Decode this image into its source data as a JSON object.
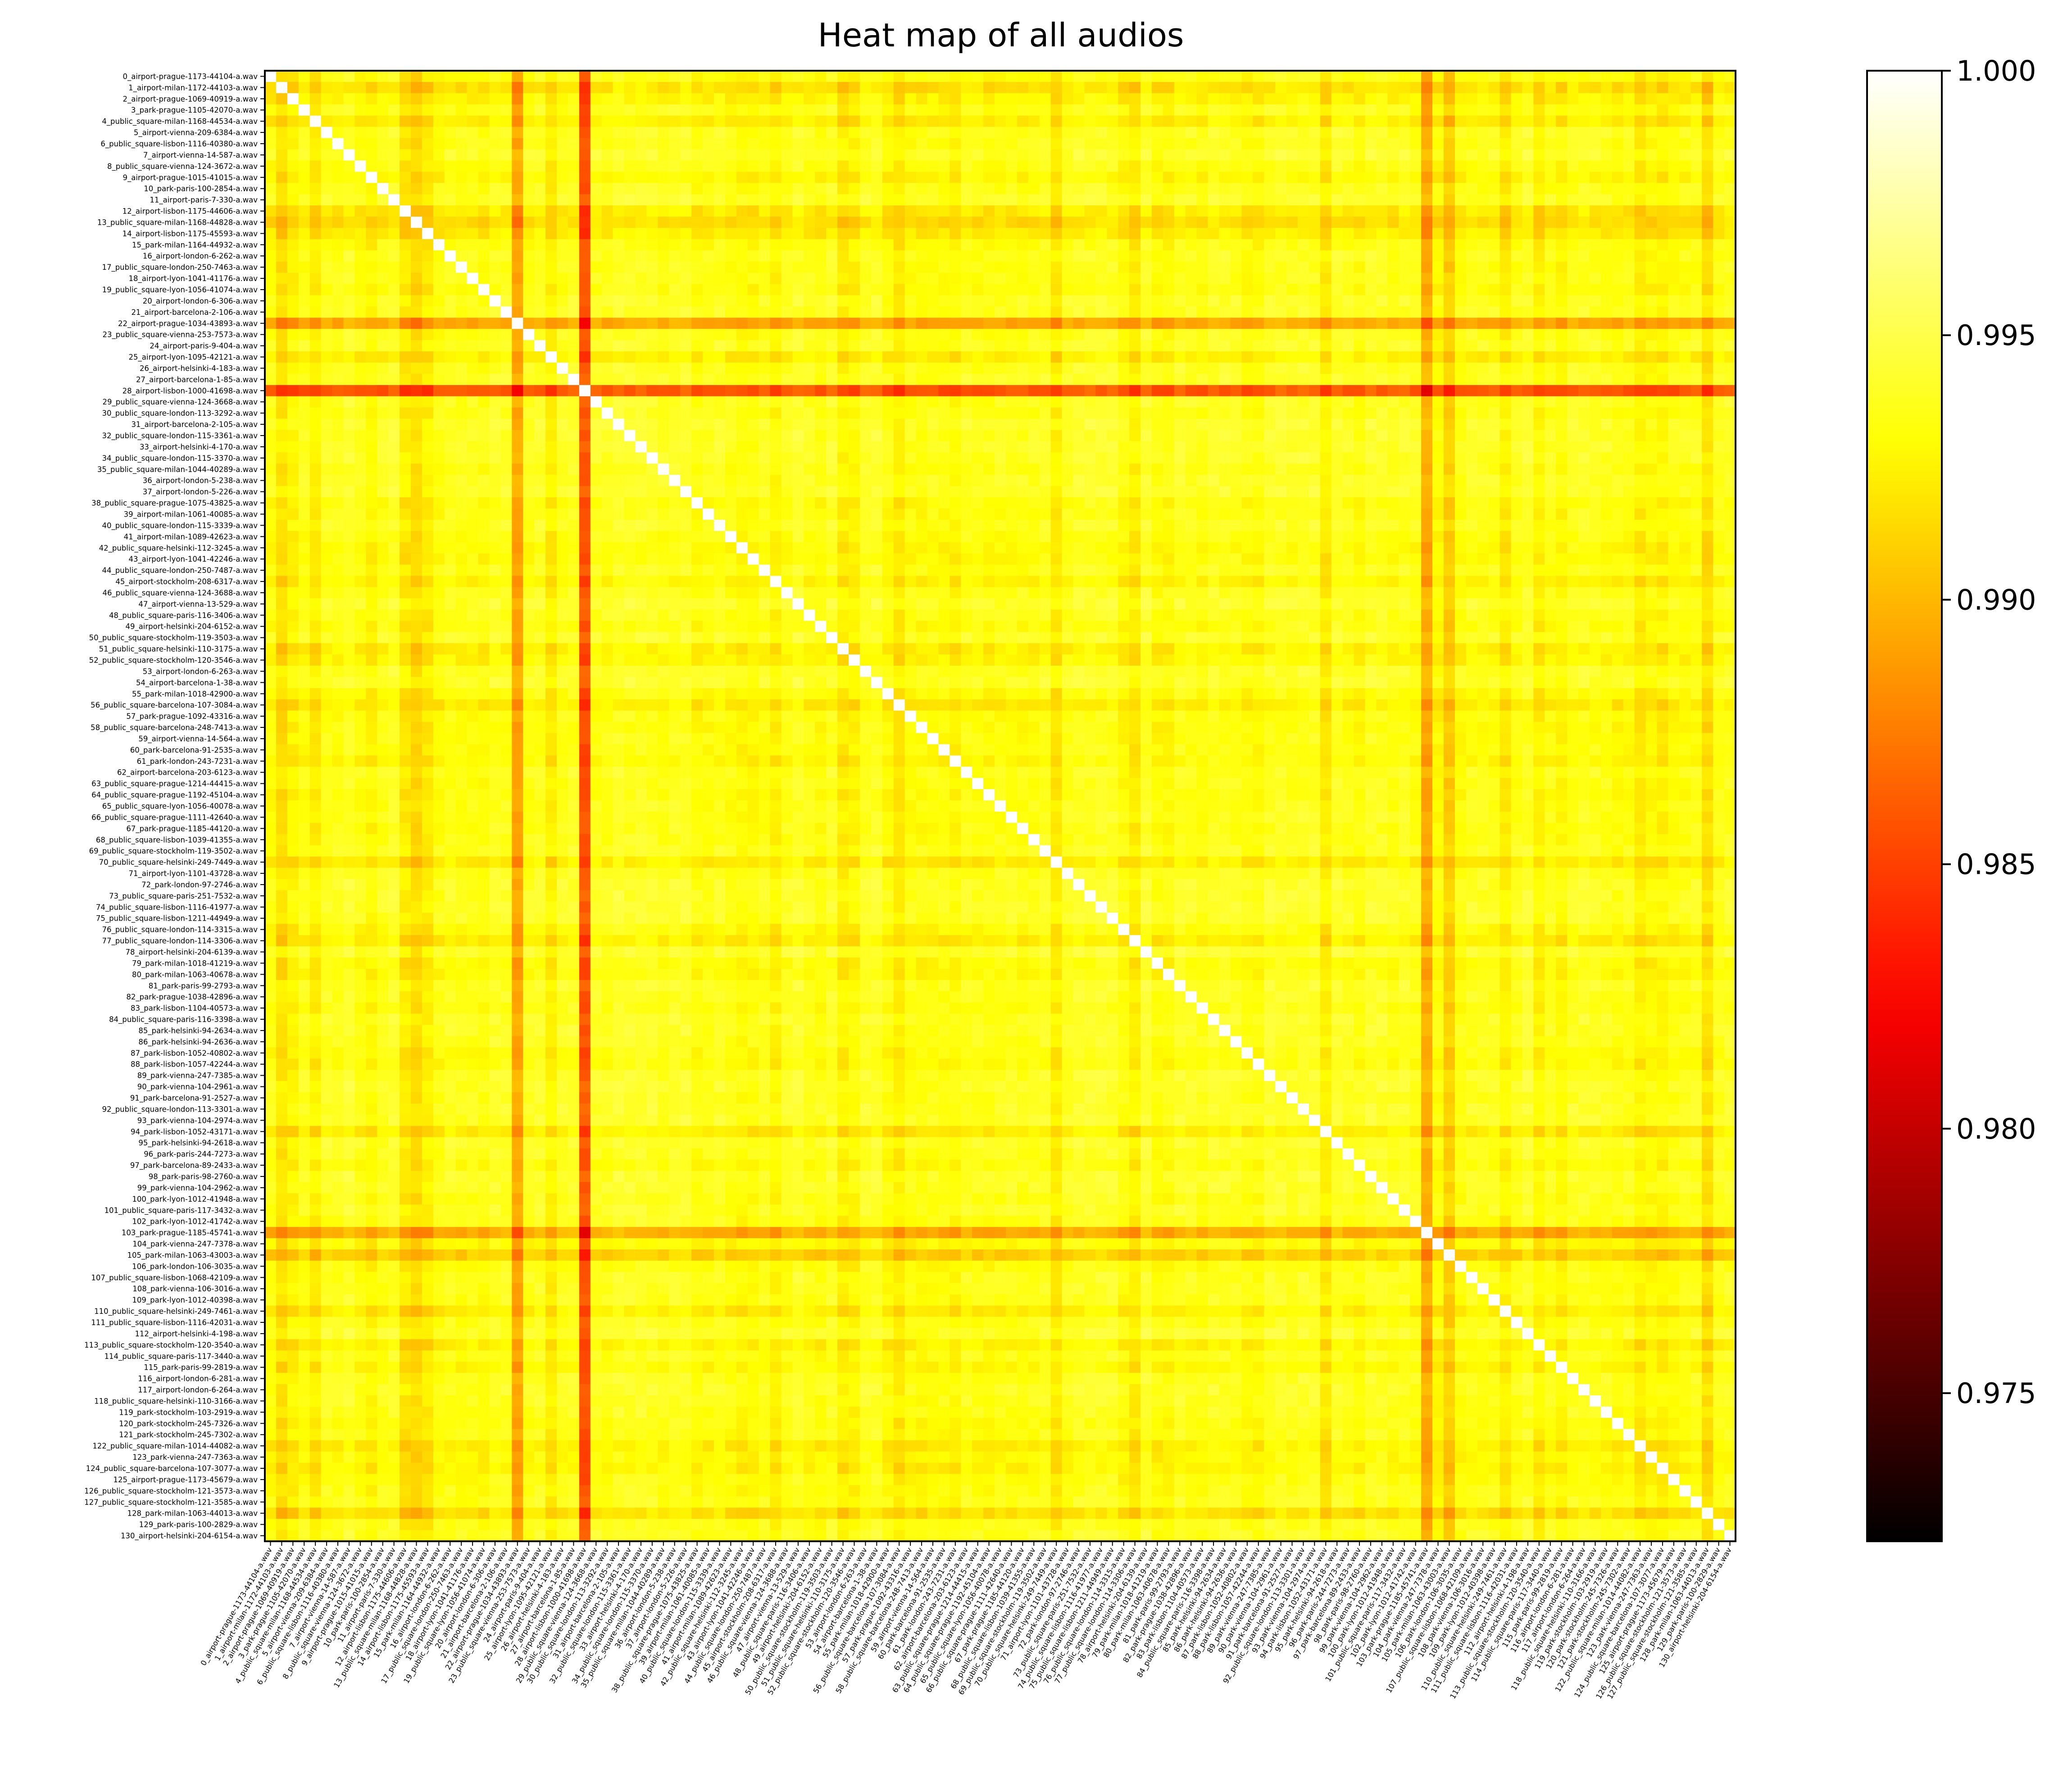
{
  "chart_data": {
    "type": "heatmap",
    "title": "Heat map of all audios",
    "labels": [
      "0_airport-prague-1173-44104-a.wav",
      "1_airport-milan-1172-44103-a.wav",
      "2_airport-prague-1069-40919-a.wav",
      "3_park-prague-1105-42070-a.wav",
      "4_public_square-milan-1168-44534-a.wav",
      "5_airport-vienna-209-6384-a.wav",
      "6_public_square-lisbon-1116-40380-a.wav",
      "7_airport-vienna-14-587-a.wav",
      "8_public_square-vienna-124-3672-a.wav",
      "9_airport-prague-1015-41015-a.wav",
      "10_park-paris-100-2854-a.wav",
      "11_airport-paris-7-330-a.wav",
      "12_airport-lisbon-1175-44606-a.wav",
      "13_public_square-milan-1168-44828-a.wav",
      "14_airport-lisbon-1175-45593-a.wav",
      "15_park-milan-1164-44932-a.wav",
      "16_airport-london-6-262-a.wav",
      "17_public_square-london-250-7463-a.wav",
      "18_airport-lyon-1041-41176-a.wav",
      "19_public_square-lyon-1056-41074-a.wav",
      "20_airport-london-6-306-a.wav",
      "21_airport-barcelona-2-106-a.wav",
      "22_airport-prague-1034-43893-a.wav",
      "23_public_square-vienna-253-7573-a.wav",
      "24_airport-paris-9-404-a.wav",
      "25_airport-lyon-1095-42121-a.wav",
      "26_airport-helsinki-4-183-a.wav",
      "27_airport-barcelona-1-85-a.wav",
      "28_airport-lisbon-1000-41698-a.wav",
      "29_public_square-vienna-124-3668-a.wav",
      "30_public_square-london-113-3292-a.wav",
      "31_airport-barcelona-2-105-a.wav",
      "32_public_square-london-115-3361-a.wav",
      "33_airport-helsinki-4-170-a.wav",
      "34_public_square-london-115-3370-a.wav",
      "35_public_square-milan-1044-40289-a.wav",
      "36_airport-london-5-238-a.wav",
      "37_airport-london-5-226-a.wav",
      "38_public_square-prague-1075-43825-a.wav",
      "39_airport-milan-1061-40085-a.wav",
      "40_public_square-london-115-3339-a.wav",
      "41_airport-milan-1089-42623-a.wav",
      "42_public_square-helsinki-112-3245-a.wav",
      "43_airport-lyon-1041-42246-a.wav",
      "44_public_square-london-250-7487-a.wav",
      "45_airport-stockholm-208-6317-a.wav",
      "46_public_square-vienna-124-3688-a.wav",
      "47_airport-vienna-13-529-a.wav",
      "48_public_square-paris-116-3406-a.wav",
      "49_airport-helsinki-204-6152-a.wav",
      "50_public_square-stockholm-119-3503-a.wav",
      "51_public_square-helsinki-110-3175-a.wav",
      "52_public_square-stockholm-120-3546-a.wav",
      "53_airport-london-6-263-a.wav",
      "54_airport-barcelona-1-38-a.wav",
      "55_park-milan-1018-42900-a.wav",
      "56_public_square-barcelona-107-3084-a.wav",
      "57_park-prague-1092-43316-a.wav",
      "58_public_square-barcelona-248-7413-a.wav",
      "59_airport-vienna-14-564-a.wav",
      "60_park-barcelona-91-2535-a.wav",
      "61_park-london-243-7231-a.wav",
      "62_airport-barcelona-203-6123-a.wav",
      "63_public_square-prague-1214-44415-a.wav",
      "64_public_square-prague-1192-45104-a.wav",
      "65_public_square-lyon-1056-40078-a.wav",
      "66_public_square-prague-1111-42640-a.wav",
      "67_park-prague-1185-44120-a.wav",
      "68_public_square-lisbon-1039-41355-a.wav",
      "69_public_square-stockholm-119-3502-a.wav",
      "70_public_square-helsinki-249-7449-a.wav",
      "71_airport-lyon-1101-43728-a.wav",
      "72_park-london-97-2746-a.wav",
      "73_public_square-paris-251-7532-a.wav",
      "74_public_square-lisbon-1116-41977-a.wav",
      "75_public_square-lisbon-1211-44949-a.wav",
      "76_public_square-london-114-3315-a.wav",
      "77_public_square-london-114-3306-a.wav",
      "78_airport-helsinki-204-6139-a.wav",
      "79_park-milan-1018-41219-a.wav",
      "80_park-milan-1063-40678-a.wav",
      "81_park-paris-99-2793-a.wav",
      "82_park-prague-1038-42896-a.wav",
      "83_park-lisbon-1104-40573-a.wav",
      "84_public_square-paris-116-3398-a.wav",
      "85_park-helsinki-94-2634-a.wav",
      "86_park-helsinki-94-2636-a.wav",
      "87_park-lisbon-1052-40802-a.wav",
      "88_park-lisbon-1057-42244-a.wav",
      "89_park-vienna-247-7385-a.wav",
      "90_park-vienna-104-2961-a.wav",
      "91_park-barcelona-91-2527-a.wav",
      "92_public_square-london-113-3301-a.wav",
      "93_park-vienna-104-2974-a.wav",
      "94_park-lisbon-1052-43171-a.wav",
      "95_park-helsinki-94-2618-a.wav",
      "96_park-paris-244-7273-a.wav",
      "97_park-barcelona-89-2433-a.wav",
      "98_park-paris-98-2760-a.wav",
      "99_park-vienna-104-2962-a.wav",
      "100_park-lyon-1012-41948-a.wav",
      "101_public_square-paris-117-3432-a.wav",
      "102_park-lyon-1012-41742-a.wav",
      "103_park-prague-1185-45741-a.wav",
      "104_park-vienna-247-7378-a.wav",
      "105_park-milan-1063-43003-a.wav",
      "106_park-london-106-3035-a.wav",
      "107_public_square-lisbon-1068-42109-a.wav",
      "108_park-vienna-106-3016-a.wav",
      "109_park-lyon-1012-40398-a.wav",
      "110_public_square-helsinki-249-7461-a.wav",
      "111_public_square-lisbon-1116-42031-a.wav",
      "112_airport-helsinki-4-198-a.wav",
      "113_public_square-stockholm-120-3540-a.wav",
      "114_public_square-paris-117-3440-a.wav",
      "115_park-paris-99-2819-a.wav",
      "116_airport-london-6-281-a.wav",
      "117_airport-london-6-264-a.wav",
      "118_public_square-helsinki-110-3166-a.wav",
      "119_park-stockholm-103-2919-a.wav",
      "120_park-stockholm-245-7326-a.wav",
      "121_park-stockholm-245-7302-a.wav",
      "122_public_square-milan-1014-44082-a.wav",
      "123_park-vienna-247-7363-a.wav",
      "124_public_square-barcelona-107-3077-a.wav",
      "125_airport-prague-1173-45679-a.wav",
      "126_public_square-stockholm-121-3573-a.wav",
      "127_public_square-stockholm-121-3585-a.wav",
      "128_park-milan-1063-44013-a.wav",
      "129_park-paris-100-2829-a.wav",
      "130_airport-helsinki-204-6154-a.wav"
    ],
    "row_base": [
      0.9962,
      0.9945,
      0.9955,
      0.9965,
      0.9952,
      0.9968,
      0.9966,
      0.9972,
      0.9964,
      0.9957,
      0.9966,
      0.9971,
      0.9948,
      0.9942,
      0.995,
      0.9962,
      0.9967,
      0.9964,
      0.9965,
      0.9962,
      0.9969,
      0.9968,
      0.9915,
      0.9966,
      0.997,
      0.9952,
      0.9968,
      0.997,
      0.9875,
      0.9968,
      0.9967,
      0.9972,
      0.997,
      0.9971,
      0.997,
      0.9966,
      0.997,
      0.9971,
      0.9962,
      0.9964,
      0.9968,
      0.9963,
      0.9959,
      0.996,
      0.9966,
      0.9955,
      0.9967,
      0.9972,
      0.9966,
      0.9962,
      0.997,
      0.9952,
      0.9956,
      0.997,
      0.9972,
      0.996,
      0.995,
      0.9962,
      0.9961,
      0.9963,
      0.9962,
      0.9957,
      0.9967,
      0.9964,
      0.9963,
      0.9965,
      0.9966,
      0.9964,
      0.9965,
      0.9968,
      0.995,
      0.9967,
      0.997,
      0.997,
      0.9971,
      0.997,
      0.996,
      0.9952,
      0.9972,
      0.996,
      0.9961,
      0.997,
      0.9968,
      0.9964,
      0.997,
      0.9969,
      0.9968,
      0.9962,
      0.9961,
      0.997,
      0.9971,
      0.9968,
      0.9971,
      0.9971,
      0.995,
      0.9971,
      0.9967,
      0.9962,
      0.9971,
      0.997,
      0.9966,
      0.9969,
      0.9965,
      0.9918,
      0.9958,
      0.9935,
      0.9962,
      0.9967,
      0.9966,
      0.9966,
      0.9952,
      0.9966,
      0.9972,
      0.9954,
      0.9965,
      0.9958,
      0.9968,
      0.9969,
      0.9967,
      0.9966,
      0.9962,
      0.9964,
      0.9952,
      0.9958,
      0.9955,
      0.9962,
      0.9964,
      0.9966,
      0.9944,
      0.9966,
      0.9969
    ],
    "colorbar": {
      "min": 0.9722,
      "max": 1.0,
      "ticks": [
        "0.975",
        "0.980",
        "0.985",
        "0.990",
        "0.995",
        "1.000"
      ],
      "tick_values": [
        0.975,
        0.98,
        0.985,
        0.99,
        0.995,
        1.0
      ],
      "colormap": "hot"
    },
    "diagonal_value": 1.0,
    "grid": false
  }
}
